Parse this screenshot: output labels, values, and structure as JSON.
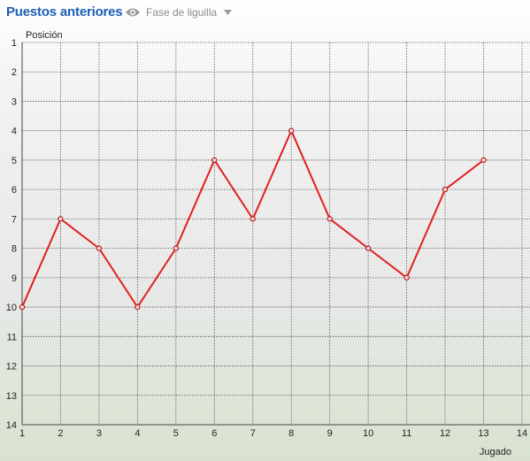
{
  "header": {
    "title": "Puestos anteriores",
    "filter_label": "Fase de liguilla",
    "icons": {
      "filter": "eye-icon",
      "dropdown": "caret-down-icon"
    }
  },
  "colors": {
    "title": "#1a5fb4",
    "line": "#e02020",
    "grid": "#555555"
  },
  "chart_data": {
    "type": "line",
    "ylabel": "Posición",
    "xlabel": "Jugado",
    "x_ticks": [
      1,
      2,
      3,
      4,
      5,
      6,
      7,
      8,
      9,
      10,
      11,
      12,
      13,
      14
    ],
    "y_ticks": [
      1,
      2,
      3,
      4,
      5,
      6,
      7,
      8,
      9,
      10,
      11,
      12,
      13,
      14
    ],
    "xlim": [
      1,
      14
    ],
    "ylim": [
      1,
      14
    ],
    "y_inverted": true,
    "grid": true,
    "series": [
      {
        "x": [
          1,
          2,
          3,
          4,
          5,
          6,
          7,
          8,
          9,
          10,
          11,
          12,
          13
        ],
        "values": [
          10,
          7,
          8,
          10,
          8,
          5,
          7,
          4,
          7,
          8,
          9,
          6,
          5
        ]
      }
    ]
  }
}
